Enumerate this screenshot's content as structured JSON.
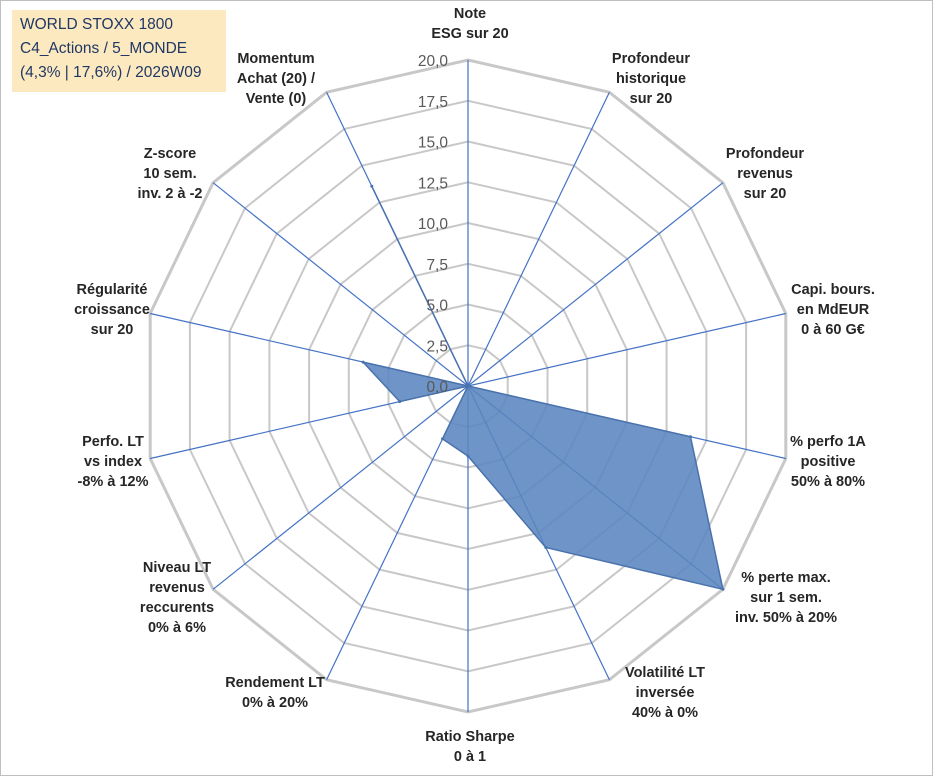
{
  "title_box": {
    "line1": "WORLD STOXX 1800",
    "line2": "C4_Actions / 5_MONDE",
    "line3": "(4,3% | 17,6%) / 2026W09"
  },
  "chart_data": {
    "type": "radar",
    "r_min": 0,
    "r_max": 20,
    "r_ticks": [
      "0,0",
      "2,5",
      "5,0",
      "7,5",
      "10,0",
      "12,5",
      "15,0",
      "17,5",
      "20,0"
    ],
    "grid": true,
    "colors": {
      "grid": "#c8c8c8",
      "spoke": "#4472c4",
      "fill": "#5b85bf",
      "stroke": "#4a72ad"
    },
    "axes": [
      "Note\nESG sur 20",
      "Profondeur\nhistorique\nsur 20",
      "Profondeur\nrevenus\nsur 20",
      "Capi. bours.\nen MdEUR\n0 à 60 G€",
      "% perfo 1A\npositive\n50% à 80%",
      "% perte max.\nsur 1 sem.\ninv. 50% à 20%",
      "Volatilité LT\ninversée\n40% à 0%",
      "Ratio Sharpe\n0 à 1",
      "Rendement LT\n0% à 20%",
      "Niveau LT\nrevenus\nreccurents\n0% à 6%",
      "Perfo. LT\nvs index\n-8% à 12%",
      "Régularité\ncroissance\nsur 20",
      "Z-score\n10 sem.\ninv. 2 à -2",
      "Momentum\nAchat (20) /\nVente (0)"
    ],
    "values": [
      0,
      0,
      0,
      0,
      14,
      20,
      11,
      4.3,
      3.6,
      0,
      4.3,
      6.6,
      0,
      13.6
    ]
  }
}
